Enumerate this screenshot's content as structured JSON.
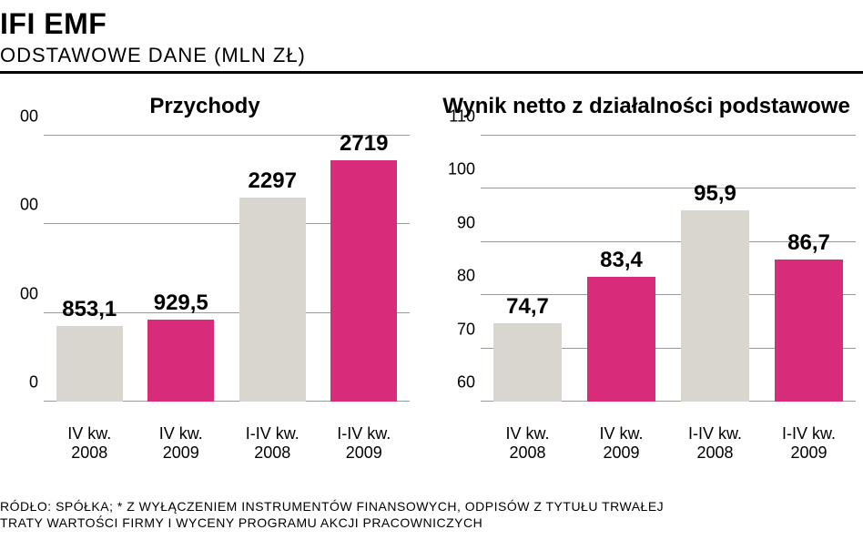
{
  "header": {
    "title": "IFI EMF",
    "subtitle": "ODSTAWOWE DANE (MLN ZŁ)"
  },
  "chart_left": {
    "type": "bar",
    "title": "Przychody",
    "y": {
      "min": 0,
      "max": 3000,
      "step": 1000,
      "ticks": [
        "0",
        "00",
        "00",
        "00"
      ]
    },
    "categories": [
      "IV kw.\n2008",
      "IV kw.\n2009",
      "I-IV kw.\n2008",
      "I-IV kw.\n2009"
    ],
    "values": [
      853.1,
      929.5,
      2297,
      2719
    ],
    "value_labels": [
      "853,1",
      "929,5",
      "2297",
      "2719"
    ],
    "colors": [
      "#d9d6cf",
      "#d82c7a",
      "#d9d6cf",
      "#d82c7a"
    ],
    "grid_color": "#9a9a9a",
    "bg": "#ffffff",
    "bar_width": 0.82,
    "value_fontsize": 24,
    "label_fontsize": 18,
    "title_fontsize": 24
  },
  "chart_right": {
    "type": "bar",
    "title": "Wynik netto z działalności podstawowe",
    "y": {
      "min": 60,
      "max": 110,
      "step": 10,
      "ticks": [
        "60",
        "70",
        "80",
        "90",
        "100",
        "110"
      ]
    },
    "categories": [
      "IV kw.\n2008",
      "IV kw.\n2009",
      "I-IV kw.\n2008",
      "I-IV kw.\n2009"
    ],
    "values": [
      74.7,
      83.4,
      95.9,
      86.7
    ],
    "value_labels": [
      "74,7",
      "83,4",
      "95,9",
      "86,7"
    ],
    "colors": [
      "#d9d6cf",
      "#d82c7a",
      "#d9d6cf",
      "#d82c7a"
    ],
    "grid_color": "#9a9a9a",
    "bg": "#ffffff",
    "bar_width": 0.82,
    "value_fontsize": 24,
    "label_fontsize": 18,
    "title_fontsize": 24
  },
  "footer": {
    "line1": "RÓDŁO: SPÓŁKA; * Z WYŁĄCZENIEM INSTRUMENTÓW FINANSOWYCH, ODPISÓW Z TYTUŁU TRWAŁEJ",
    "line2": "TRATY WARTOŚCI FIRMY I WYCENY PROGRAMU AKCJI PRACOWNICZYCH"
  },
  "palette": {
    "bar_gray": "#d9d6cf",
    "bar_pink": "#d82c7a",
    "grid": "#9a9a9a",
    "text": "#000000",
    "bg": "#ffffff"
  }
}
